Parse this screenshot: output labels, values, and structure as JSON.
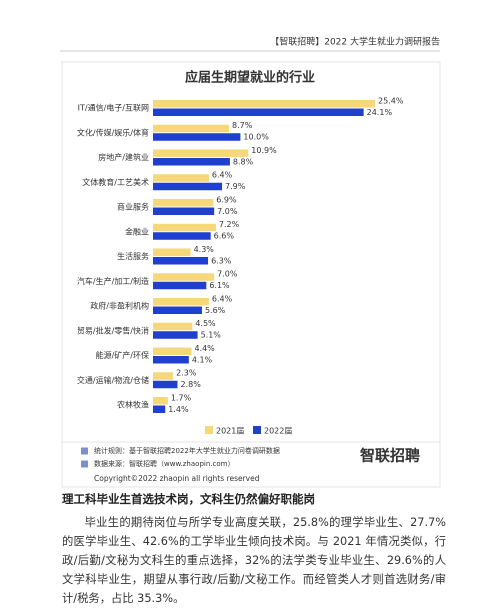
{
  "header": "【智联招聘】2022 大学生就业力调研报告",
  "chart_data": {
    "type": "bar",
    "orientation": "horizontal",
    "title": "应届生期望就业的行业",
    "categories": [
      "IT/通信/电子/互联网",
      "文化/传媒/娱乐/体育",
      "房地产/建筑业",
      "文体教育/工艺美术",
      "商业服务",
      "金融业",
      "生活服务",
      "汽车/生产/加工/制造",
      "政府/非盈利机构",
      "贸易/批发/零售/快消",
      "能源/矿产/环保",
      "交通/运输/物流/仓储",
      "农林牧渔"
    ],
    "series": [
      {
        "name": "2021届",
        "color": "#f6d77a",
        "values": [
          25.4,
          8.7,
          10.9,
          6.4,
          6.9,
          7.2,
          4.3,
          7.0,
          6.4,
          4.5,
          4.4,
          2.3,
          1.7
        ],
        "value_labels": [
          "25.4%",
          "8.7%",
          "10.9%",
          "6.4%",
          "6.9%",
          "7.2%",
          "4.3%",
          "7.0%",
          "6.4%",
          "4.5%",
          "4.4%",
          "2.3%",
          "1.7%"
        ]
      },
      {
        "name": "2022届",
        "color": "#1f3fcf",
        "values": [
          24.1,
          10.0,
          8.8,
          7.9,
          7.0,
          6.6,
          6.3,
          6.1,
          5.6,
          5.1,
          4.1,
          2.8,
          1.4
        ],
        "value_labels": [
          "24.1%",
          "10.0%",
          "8.8%",
          "7.9%",
          "7.0%",
          "6.6%",
          "6.3%",
          "6.1%",
          "5.6%",
          "5.1%",
          "4.1%",
          "2.8%",
          "1.4%"
        ]
      }
    ],
    "legend": "bottom"
  },
  "notes": [
    "统计规则：基于智联招聘2022年大学生就业力问卷调研数据",
    "数据来源：智联招聘（www.zhaopin.com）"
  ],
  "logo": "智联招聘",
  "copyright": "Copyright©2022 zhaopin all rights reserved",
  "section": {
    "heading": "理工科毕业生首选技术岗，文科生仍然偏好职能岗",
    "body": "毕业生的期待岗位与所学专业高度关联，25.8%的理学毕业生、27.7%的医学毕业生、42.6%的工学毕业生倾向技术岗。与 2021 年情况类似，行政/后勤/文秘为文科生的重点选择，32%的法学类专业毕业生、29.6%的人文学科毕业生，期望从事行政/后勤/文秘工作。而经管类人才则首选财务/审计/税务，占比 35.3%。"
  }
}
